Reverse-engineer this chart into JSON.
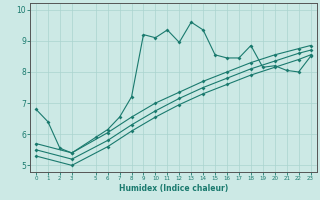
{
  "xlabel": "Humidex (Indice chaleur)",
  "bg_color": "#cce9e5",
  "grid_color": "#aad4cf",
  "line_color": "#1a7a6e",
  "spine_color": "#555555",
  "xlim": [
    -0.5,
    23.5
  ],
  "ylim": [
    4.8,
    10.2
  ],
  "xticks": [
    0,
    1,
    2,
    3,
    5,
    6,
    7,
    8,
    9,
    10,
    11,
    12,
    13,
    14,
    15,
    16,
    17,
    18,
    19,
    20,
    21,
    22,
    23
  ],
  "yticks": [
    5,
    6,
    7,
    8,
    9,
    10
  ],
  "line1_x": [
    0,
    1,
    2,
    3,
    5,
    6,
    7,
    8,
    9,
    10,
    11,
    12,
    13,
    14,
    15,
    16,
    17,
    18,
    19,
    20,
    21,
    22,
    23
  ],
  "line1_y": [
    6.8,
    6.4,
    5.55,
    5.4,
    5.9,
    6.15,
    6.55,
    7.2,
    9.2,
    9.1,
    9.35,
    8.95,
    9.6,
    9.35,
    8.55,
    8.45,
    8.45,
    8.85,
    8.15,
    8.2,
    8.05,
    8.0,
    8.5
  ],
  "line2_x": [
    0,
    3,
    6,
    8,
    10,
    12,
    14,
    16,
    18,
    20,
    22,
    23
  ],
  "line2_y": [
    5.7,
    5.4,
    6.05,
    6.55,
    7.0,
    7.35,
    7.7,
    8.0,
    8.3,
    8.55,
    8.75,
    8.85
  ],
  "line3_x": [
    0,
    3,
    6,
    8,
    10,
    12,
    14,
    16,
    18,
    20,
    22,
    23
  ],
  "line3_y": [
    5.5,
    5.2,
    5.8,
    6.3,
    6.75,
    7.15,
    7.5,
    7.8,
    8.1,
    8.35,
    8.6,
    8.7
  ],
  "line4_x": [
    0,
    3,
    6,
    8,
    10,
    12,
    14,
    16,
    18,
    20,
    22,
    23
  ],
  "line4_y": [
    5.3,
    5.0,
    5.6,
    6.1,
    6.55,
    6.95,
    7.3,
    7.6,
    7.9,
    8.15,
    8.4,
    8.55
  ]
}
